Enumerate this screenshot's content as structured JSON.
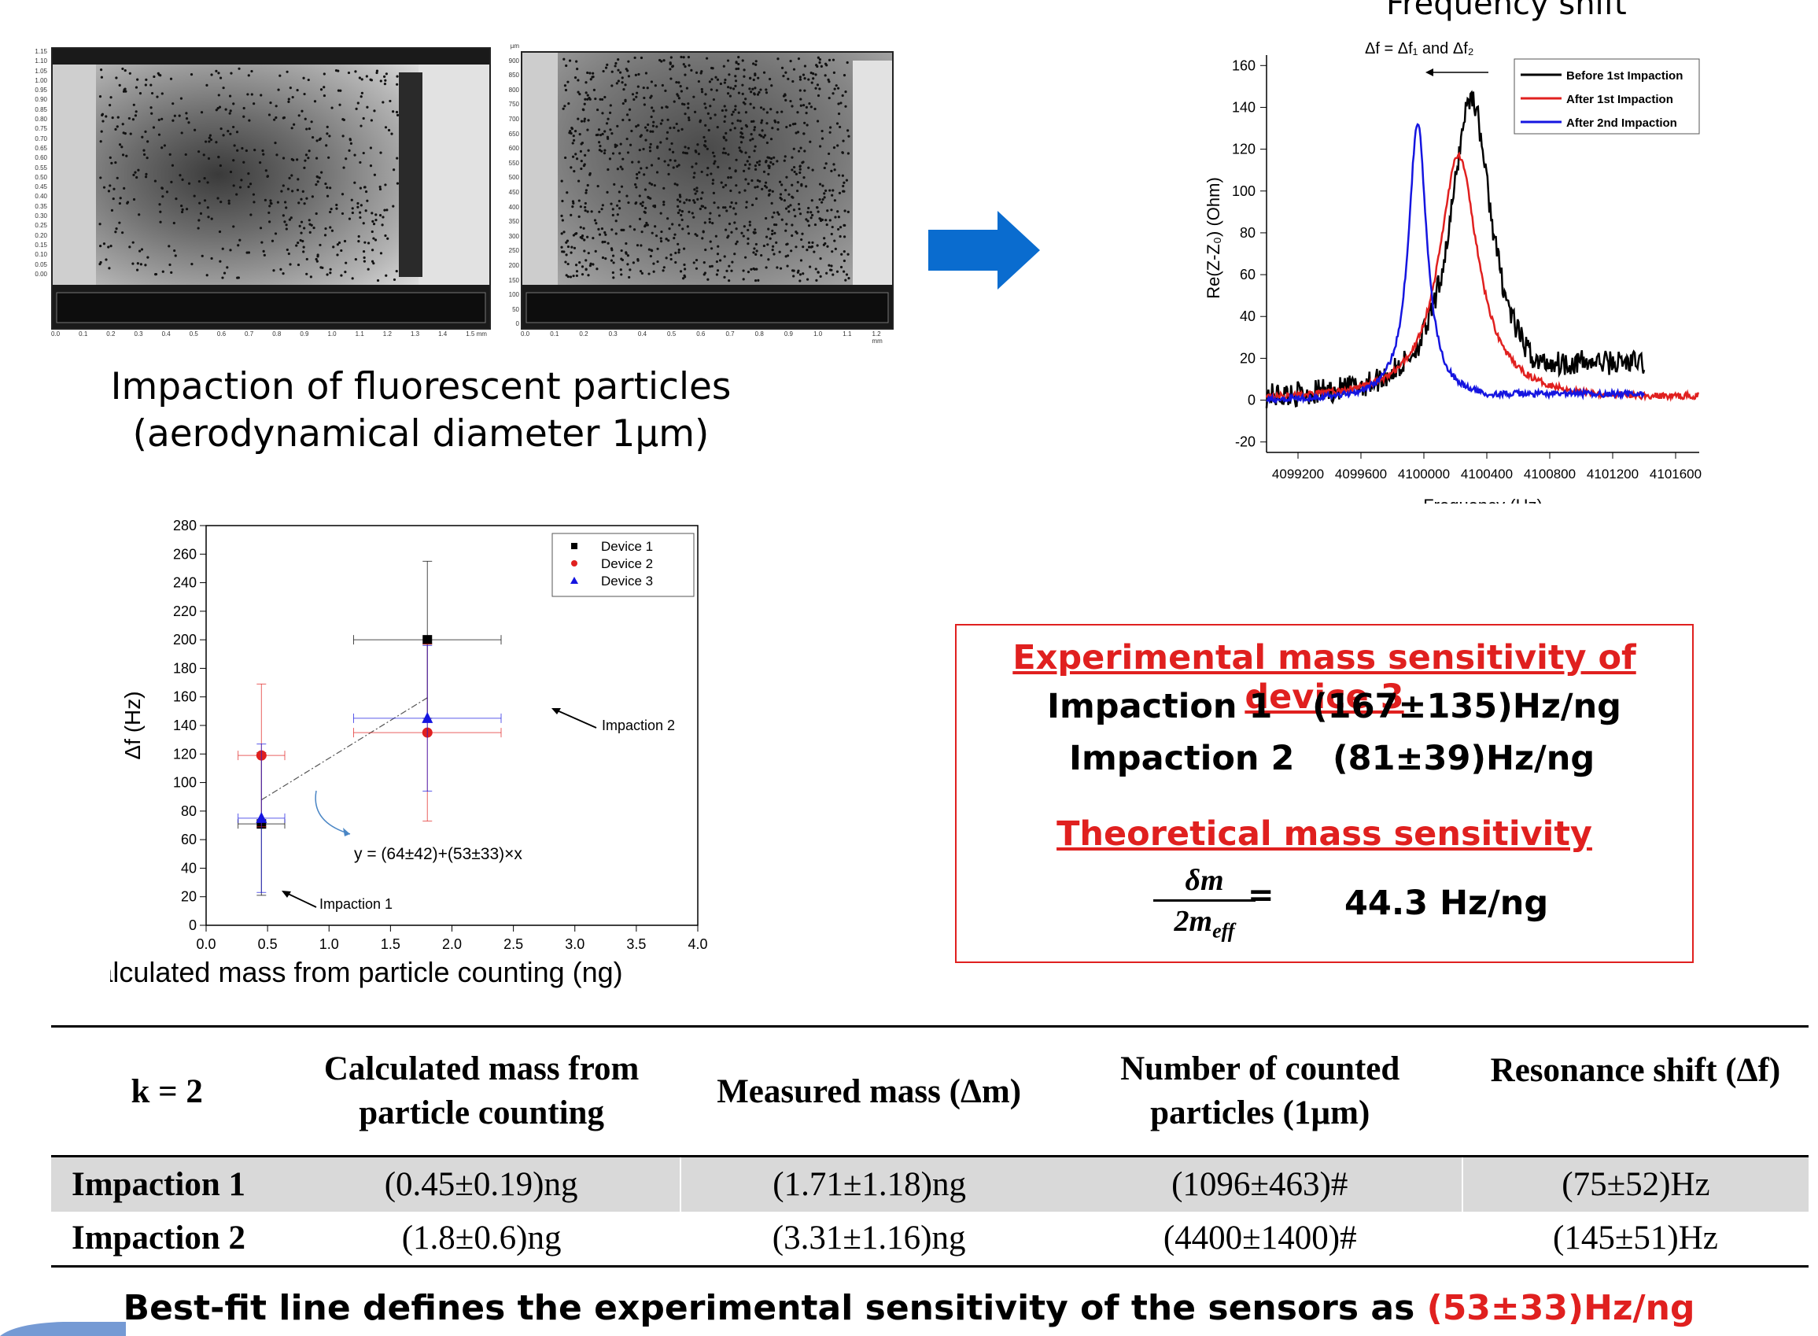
{
  "caption": {
    "line1": "Impaction of fluorescent particles",
    "line2": "(aerodynamical diameter 1µm)"
  },
  "freq_title": "Frequency shift",
  "arrow_color": "#0a6ccf",
  "microscope": {
    "left_axis_ticks": [
      "1.15",
      "1.10",
      "1.05",
      "1.00",
      "0.95",
      "0.90",
      "0.85",
      "0.80",
      "0.75",
      "0.70",
      "0.65",
      "0.60",
      "0.55",
      "0.50",
      "0.45",
      "0.40",
      "0.35",
      "0.30",
      "0.25",
      "0.20",
      "0.15",
      "0.10",
      "0.05",
      "0.00"
    ],
    "left_x_ticks": [
      "0.0",
      "0.1",
      "0.2",
      "0.3",
      "0.4",
      "0.5",
      "0.6",
      "0.7",
      "0.8",
      "0.9",
      "1.0",
      "1.1",
      "1.2",
      "1.3",
      "1.4",
      "1.5 mm"
    ],
    "right_axis_unit": "µm",
    "right_axis_ticks": [
      "900",
      "850",
      "800",
      "750",
      "700",
      "650",
      "600",
      "550",
      "500",
      "450",
      "400",
      "350",
      "300",
      "250",
      "200",
      "150",
      "100",
      "50",
      "0"
    ],
    "right_x_ticks": [
      "0.0",
      "0.1",
      "0.2",
      "0.3",
      "0.4",
      "0.5",
      "0.6",
      "0.7",
      "0.8",
      "0.9",
      "1.0",
      "1.1",
      "1.2 mm"
    ]
  },
  "chart_data": [
    {
      "type": "line",
      "title": "Frequency shift",
      "annotation": "Δf = Δf₁ and Δf₂",
      "xlabel": "Frequency (Hz)",
      "ylabel": "Re(Z-Z₀) (Ohm)",
      "xlim": [
        4099000,
        4101750
      ],
      "ylim": [
        -25,
        165
      ],
      "xticks": [
        4099200,
        4099600,
        4100000,
        4100400,
        4100800,
        4101200,
        4101600
      ],
      "yticks": [
        -20,
        0,
        20,
        40,
        60,
        80,
        100,
        120,
        140,
        160
      ],
      "legend_position": "top-right",
      "series": [
        {
          "name": "Before 1st Impaction",
          "color": "#000000",
          "peak_x": 4100300,
          "peak_y": 145,
          "width": 160,
          "baseline_end": 18,
          "x_start": 4099000,
          "x_end": 4101400
        },
        {
          "name": "After 1st Impaction",
          "color": "#e0201f",
          "peak_x": 4100220,
          "peak_y": 117,
          "width": 150,
          "baseline_end": 2,
          "x_start": 4099000,
          "x_end": 4101750
        },
        {
          "name": "After 2nd Impaction",
          "color": "#1515e0",
          "peak_x": 4099960,
          "peak_y": 133,
          "width": 70,
          "baseline_end": 3,
          "x_start": 4099000,
          "x_end": 4101400
        }
      ]
    },
    {
      "type": "scatter",
      "xlabel": "Calculated mass from particle counting (ng)",
      "ylabel": "Δf (Hz)",
      "xlim": [
        0,
        4.0
      ],
      "ylim": [
        0,
        280
      ],
      "xticks": [
        "0.0",
        "0.5",
        "1.0",
        "1.5",
        "2.0",
        "2.5",
        "3.0",
        "3.5",
        "4.0"
      ],
      "yticks": [
        "0",
        "20",
        "40",
        "60",
        "80",
        "100",
        "120",
        "140",
        "160",
        "180",
        "200",
        "220",
        "240",
        "260",
        "280"
      ],
      "legend_position": "top-right",
      "series": [
        {
          "name": "Device 1",
          "color": "#000000",
          "marker": "square",
          "points": [
            {
              "x": 0.45,
              "y": 71,
              "xerr": 0.19,
              "yerr": 50
            },
            {
              "x": 1.8,
              "y": 200,
              "xerr": 0.6,
              "yerr": 55
            }
          ]
        },
        {
          "name": "Device 2",
          "color": "#e0201f",
          "marker": "circle",
          "points": [
            {
              "x": 0.45,
              "y": 119,
              "xerr": 0.19,
              "yerr": 50
            },
            {
              "x": 1.8,
              "y": 135,
              "xerr": 0.6,
              "yerr": 62
            }
          ]
        },
        {
          "name": "Device 3",
          "color": "#1515e0",
          "marker": "triangle",
          "points": [
            {
              "x": 0.45,
              "y": 75,
              "xerr": 0.19,
              "yerr": 52
            },
            {
              "x": 1.8,
              "y": 145,
              "xerr": 0.6,
              "yerr": 51
            }
          ]
        }
      ],
      "fit": {
        "intercept": 64,
        "slope": 53,
        "x_range": [
          0.45,
          1.8
        ],
        "label": "y = (64±42)+(53±33)×x"
      },
      "annotations": [
        "Impaction 1",
        "Impaction 2"
      ]
    }
  ],
  "sensitivity_box": {
    "title": "Experimental mass sensitivity of device 3",
    "rows": [
      {
        "label": "Impaction 1",
        "value": "(167±135)Hz/ng"
      },
      {
        "label": "Impaction 2",
        "value": "(81±39)Hz/ng"
      }
    ],
    "theory_title": "Theoretical mass sensitivity",
    "formula_num": "δm",
    "formula_den": "2m",
    "formula_den_sub": "eff",
    "equals": "=",
    "theory_value": "44.3 Hz/ng"
  },
  "table": {
    "headers": [
      "k = 2",
      "Calculated mass from particle counting",
      "Measured mass (Δm)",
      "Number of counted particles (1µm)",
      "Resonance shift (Δf)"
    ],
    "rows": [
      [
        "Impaction 1",
        "(0.45±0.19)ng",
        "(1.71±1.18)ng",
        "(1096±463)#",
        "(75±52)Hz"
      ],
      [
        "Impaction 2",
        "(1.8±0.6)ng",
        "(3.31±1.16)ng",
        "(4400±1400)#",
        "(145±51)Hz"
      ]
    ]
  },
  "bottom_note": {
    "text": "Best-fit line defines the experimental sensitivity of the sensors as ",
    "highlight": "(53±33)Hz/ng"
  }
}
